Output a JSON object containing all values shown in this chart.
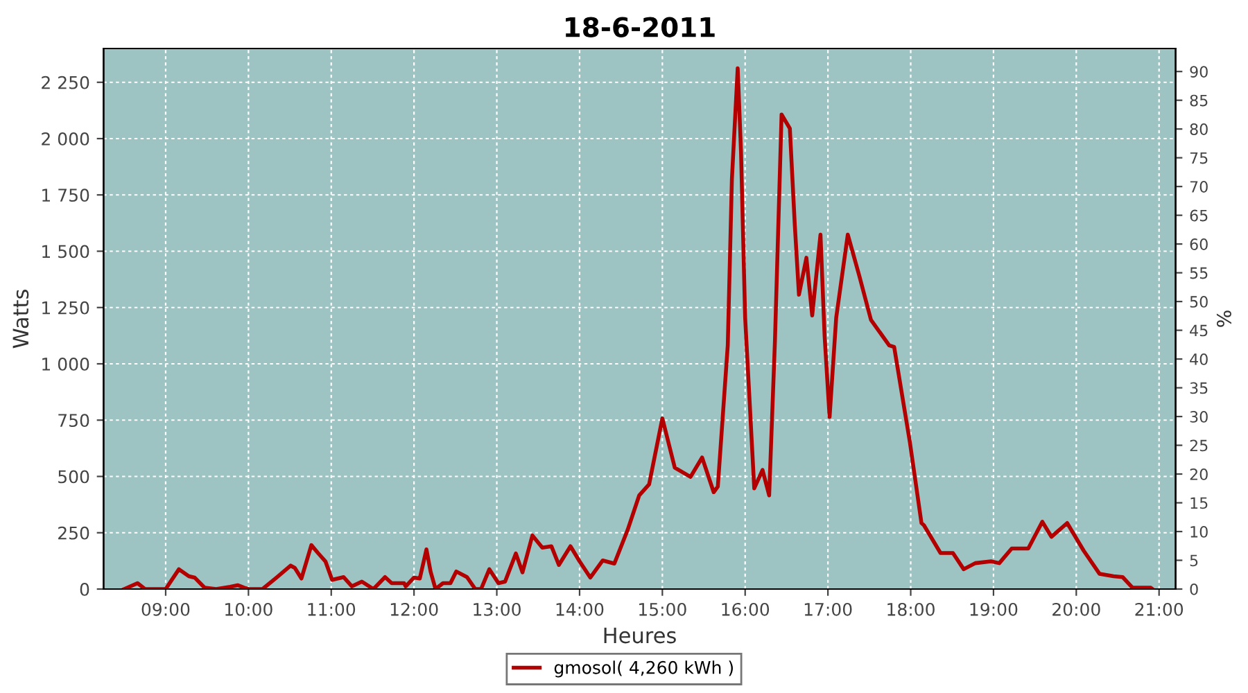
{
  "chart_data": {
    "type": "line",
    "title": "18-6-2011",
    "xlabel": "Heures",
    "ylabel": "Watts",
    "y2label": "%",
    "x": [
      8.5,
      8.66,
      8.75,
      9.0,
      9.16,
      9.28,
      9.35,
      9.47,
      9.61,
      9.78,
      9.87,
      9.95,
      10.0,
      10.17,
      10.34,
      10.51,
      10.56,
      10.64,
      10.76,
      10.84,
      10.93,
      11.01,
      11.15,
      11.25,
      11.37,
      11.51,
      11.65,
      11.73,
      11.88,
      11.9,
      12.0,
      12.07,
      12.15,
      12.2,
      12.26,
      12.35,
      12.44,
      12.51,
      12.64,
      12.74,
      12.81,
      12.91,
      13.02,
      13.1,
      13.23,
      13.31,
      13.43,
      13.55,
      13.66,
      13.75,
      13.89,
      14.0,
      14.13,
      14.28,
      14.42,
      14.58,
      14.72,
      14.84,
      15.0,
      15.15,
      15.34,
      15.48,
      15.62,
      15.67,
      15.79,
      15.84,
      15.91,
      15.95,
      16.0,
      16.11,
      16.21,
      16.29,
      16.36,
      16.44,
      16.54,
      16.6,
      16.65,
      16.74,
      16.81,
      16.91,
      16.96,
      17.02,
      17.1,
      17.24,
      17.38,
      17.52,
      17.74,
      17.8,
      17.99,
      18.13,
      18.16,
      18.36,
      18.51,
      18.64,
      18.78,
      18.97,
      19.07,
      19.22,
      19.42,
      19.59,
      19.7,
      19.89,
      20.09,
      20.28,
      20.45,
      20.56,
      20.68,
      20.9,
      20.92
    ],
    "series": [
      {
        "name": "gmosol( 4,260 kWh )",
        "color": "#b30000",
        "values": [
          0,
          26,
          0,
          0,
          88,
          57,
          51,
          6,
          0,
          10,
          17,
          6,
          0,
          0,
          51,
          104,
          94,
          47,
          195,
          160,
          123,
          41,
          53,
          12,
          33,
          0,
          53,
          26,
          26,
          12,
          51,
          47,
          176,
          78,
          0,
          26,
          26,
          78,
          53,
          0,
          0,
          88,
          26,
          33,
          158,
          74,
          238,
          184,
          190,
          107,
          190,
          123,
          51,
          127,
          113,
          262,
          416,
          465,
          758,
          539,
          498,
          584,
          430,
          455,
          1082,
          1820,
          2312,
          1943,
          1205,
          447,
          529,
          416,
          1102,
          2107,
          2045,
          1615,
          1307,
          1471,
          1215,
          1574,
          1123,
          764,
          1205,
          1574,
          1389,
          1195,
          1082,
          1075,
          652,
          293,
          283,
          160,
          160,
          88,
          115,
          123,
          115,
          180,
          180,
          299,
          232,
          293,
          170,
          68,
          57,
          53,
          6,
          6,
          0
        ]
      }
    ],
    "xlim": [
      8.25,
      21.2
    ],
    "xticks": [
      {
        "value": 9,
        "label": "09:00"
      },
      {
        "value": 10,
        "label": "10:00"
      },
      {
        "value": 11,
        "label": "11:00"
      },
      {
        "value": 12,
        "label": "12:00"
      },
      {
        "value": 13,
        "label": "13:00"
      },
      {
        "value": 14,
        "label": "14:00"
      },
      {
        "value": 15,
        "label": "15:00"
      },
      {
        "value": 16,
        "label": "16:00"
      },
      {
        "value": 17,
        "label": "17:00"
      },
      {
        "value": 18,
        "label": "18:00"
      },
      {
        "value": 19,
        "label": "19:00"
      },
      {
        "value": 20,
        "label": "20:00"
      },
      {
        "value": 21,
        "label": "21:00"
      }
    ],
    "ylim": [
      0,
      2400
    ],
    "yticks": [
      0,
      250,
      500,
      750,
      {
        "value": 1000,
        "label": "1 000"
      },
      {
        "value": 1250,
        "label": "1 250"
      },
      {
        "value": 1500,
        "label": "1 500"
      },
      {
        "value": 1750,
        "label": "1 750"
      },
      {
        "value": 2000,
        "label": "2 000"
      },
      {
        "value": 2250,
        "label": "2 250"
      }
    ],
    "y2lim": [
      0,
      94
    ],
    "y2ticks": [
      0,
      5,
      10,
      15,
      20,
      25,
      30,
      35,
      40,
      45,
      50,
      55,
      60,
      65,
      70,
      75,
      80,
      85,
      90
    ],
    "grid": true,
    "legend": "bottom",
    "marker": "none",
    "line_style": "solid"
  }
}
